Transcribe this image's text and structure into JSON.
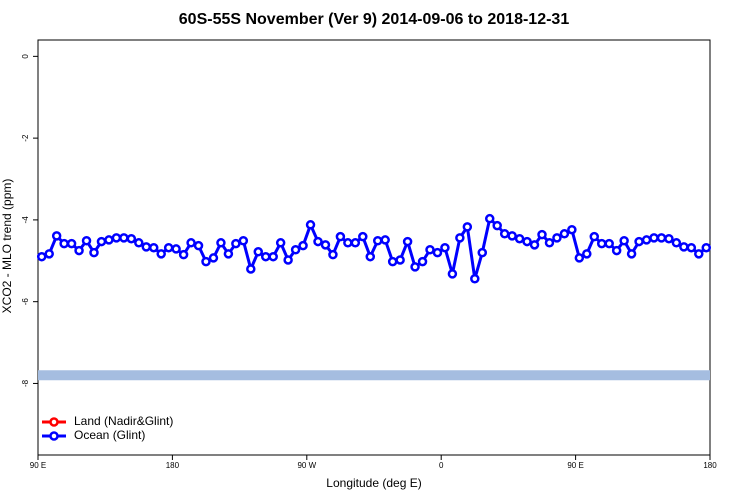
{
  "chart_data": {
    "type": "line",
    "title": "60S-55S November (Ver 9)   2014-09-06 to 2018-12-31",
    "x_label": "Longitude (deg E)",
    "y_label": "XCO2 - MLO trend (ppm)",
    "xlim": [
      90,
      540
    ],
    "xticks": [
      {
        "value": 90,
        "label": "90 E"
      },
      180,
      {
        "value": 270,
        "label": "90 W"
      },
      {
        "value": 360,
        "label": "0"
      },
      {
        "value": 450,
        "label": "90 E"
      },
      {
        "value": 540,
        "label": "180"
      }
    ],
    "ylim": [
      -9.75,
      0.4
    ],
    "yticks": [
      0,
      -2,
      -4,
      -6,
      -8
    ],
    "band": {
      "value": -7.8,
      "color": "#a5bde0"
    },
    "legend_position": "bottom-left",
    "x": [
      92.5,
      97.5,
      102.5,
      107.5,
      112.5,
      117.5,
      122.5,
      127.5,
      132.5,
      137.5,
      142.5,
      147.5,
      152.5,
      157.5,
      162.5,
      167.5,
      172.5,
      177.5,
      182.5,
      187.5,
      192.5,
      197.5,
      202.5,
      207.5,
      212.5,
      217.5,
      222.5,
      227.5,
      232.5,
      237.5,
      242.5,
      247.5,
      252.5,
      257.5,
      262.5,
      267.5,
      272.5,
      277.5,
      282.5,
      287.5,
      292.5,
      297.5,
      302.5,
      307.5,
      312.5,
      317.5,
      322.5,
      327.5,
      332.5,
      337.5,
      342.5,
      347.5,
      352.5,
      357.5,
      362.5,
      367.5,
      372.5,
      377.5,
      382.5,
      387.5,
      392.5,
      397.5,
      402.5,
      407.5,
      412.5,
      417.5,
      422.5,
      427.5,
      432.5,
      437.5,
      442.5,
      447.5,
      452.5,
      457.5,
      462.5,
      467.5,
      472.5,
      477.5,
      482.5,
      487.5,
      492.5,
      497.5,
      502.5,
      507.5,
      512.5,
      517.5,
      522.5,
      527.5,
      532.5,
      537.5
    ],
    "series": [
      {
        "name": "Land (Nadir&Glint)",
        "color": "#ff0000",
        "values": [
          null,
          null,
          null,
          null,
          null,
          null,
          null,
          null,
          null,
          null,
          null,
          null,
          null,
          null,
          null,
          null,
          null,
          null,
          null,
          null,
          null,
          null,
          null,
          null,
          null,
          null,
          null,
          null,
          null,
          null,
          null,
          null,
          null,
          null,
          null,
          null,
          null,
          null,
          null,
          null,
          null,
          null,
          null,
          null,
          null,
          null,
          null,
          null,
          null,
          null,
          null,
          null,
          null,
          null,
          null,
          null,
          null,
          null,
          null,
          null,
          null,
          null,
          null,
          null,
          null,
          null,
          null,
          null,
          null,
          null,
          null,
          null,
          null,
          null,
          null,
          null,
          null,
          null,
          null,
          null,
          null,
          null,
          null,
          null,
          null,
          null,
          null,
          null,
          null,
          null
        ]
      },
      {
        "name": "Ocean (Glint)",
        "color": "#0000ff",
        "values": [
          -4.9,
          -4.83,
          -4.39,
          -4.58,
          -4.58,
          -4.75,
          -4.51,
          -4.8,
          -4.53,
          -4.49,
          -4.44,
          -4.44,
          -4.46,
          -4.56,
          -4.66,
          -4.68,
          -4.83,
          -4.68,
          -4.71,
          -4.85,
          -4.56,
          -4.63,
          -5.02,
          -4.93,
          -4.56,
          -4.83,
          -4.58,
          -4.51,
          -5.2,
          -4.78,
          -4.9,
          -4.9,
          -4.56,
          -4.98,
          -4.73,
          -4.63,
          -4.12,
          -4.53,
          -4.61,
          -4.85,
          -4.41,
          -4.56,
          -4.56,
          -4.41,
          -4.9,
          -4.51,
          -4.49,
          -5.02,
          -4.98,
          -4.53,
          -5.15,
          -5.02,
          -4.73,
          -4.8,
          -4.68,
          -5.32,
          -4.44,
          -4.17,
          -5.44,
          -4.8,
          -3.97,
          -4.14,
          -4.34,
          -4.39,
          -4.46,
          -4.53,
          -4.61,
          -4.36,
          -4.56,
          -4.44,
          -4.34,
          -4.24,
          -4.93,
          -4.83,
          -4.41,
          -4.58,
          -4.58,
          -4.75,
          -4.51,
          -4.83,
          -4.53,
          -4.49,
          -4.44,
          -4.44,
          -4.46,
          -4.56,
          -4.66,
          -4.68,
          -4.83,
          -4.68
        ]
      }
    ]
  }
}
